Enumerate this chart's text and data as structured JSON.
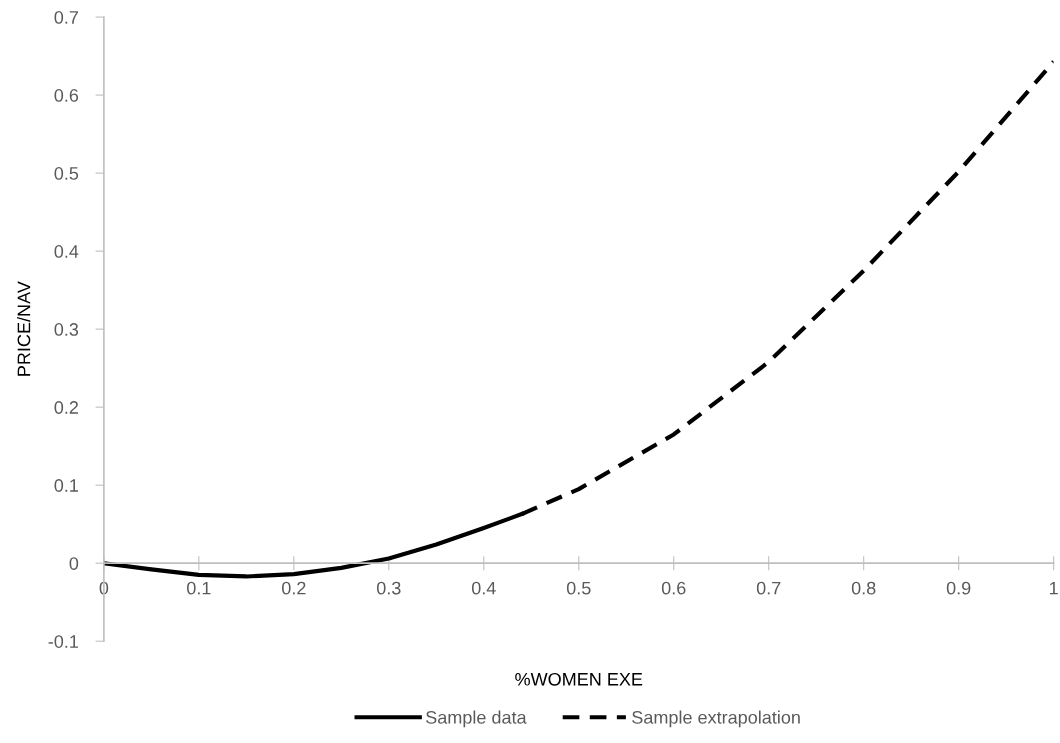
{
  "chart_data": {
    "type": "line",
    "xlabel": "%WOMEN EXE",
    "ylabel": "PRICE/NAV",
    "xlim": [
      0,
      1
    ],
    "xticks": [
      0,
      0.1,
      0.2,
      0.3,
      0.4,
      0.5,
      0.6,
      0.7,
      0.8,
      0.9,
      1
    ],
    "ylim": [
      -0.1,
      0.7
    ],
    "yticks": [
      -0.1,
      0,
      0.1,
      0.2,
      0.3,
      0.4,
      0.5,
      0.6,
      0.7
    ],
    "grid": false,
    "legend": "bottom",
    "marker": "none",
    "series": [
      {
        "name": "Sample data",
        "color": "#000000",
        "line_style": "solid",
        "x": [
          0,
          0.05,
          0.1,
          0.15,
          0.2,
          0.25,
          0.3,
          0.35,
          0.4,
          0.44
        ],
        "values": [
          0,
          -0.008,
          -0.015,
          -0.017,
          -0.014,
          -0.006,
          0.006,
          0.024,
          0.045,
          0.063
        ]
      },
      {
        "name": "Sample extrapolation",
        "color": "#000000",
        "line_style": "dashed",
        "x": [
          0.44,
          0.5,
          0.6,
          0.7,
          0.8,
          0.9,
          1.0
        ],
        "values": [
          0.063,
          0.095,
          0.165,
          0.258,
          0.375,
          0.502,
          0.643
        ]
      }
    ]
  }
}
